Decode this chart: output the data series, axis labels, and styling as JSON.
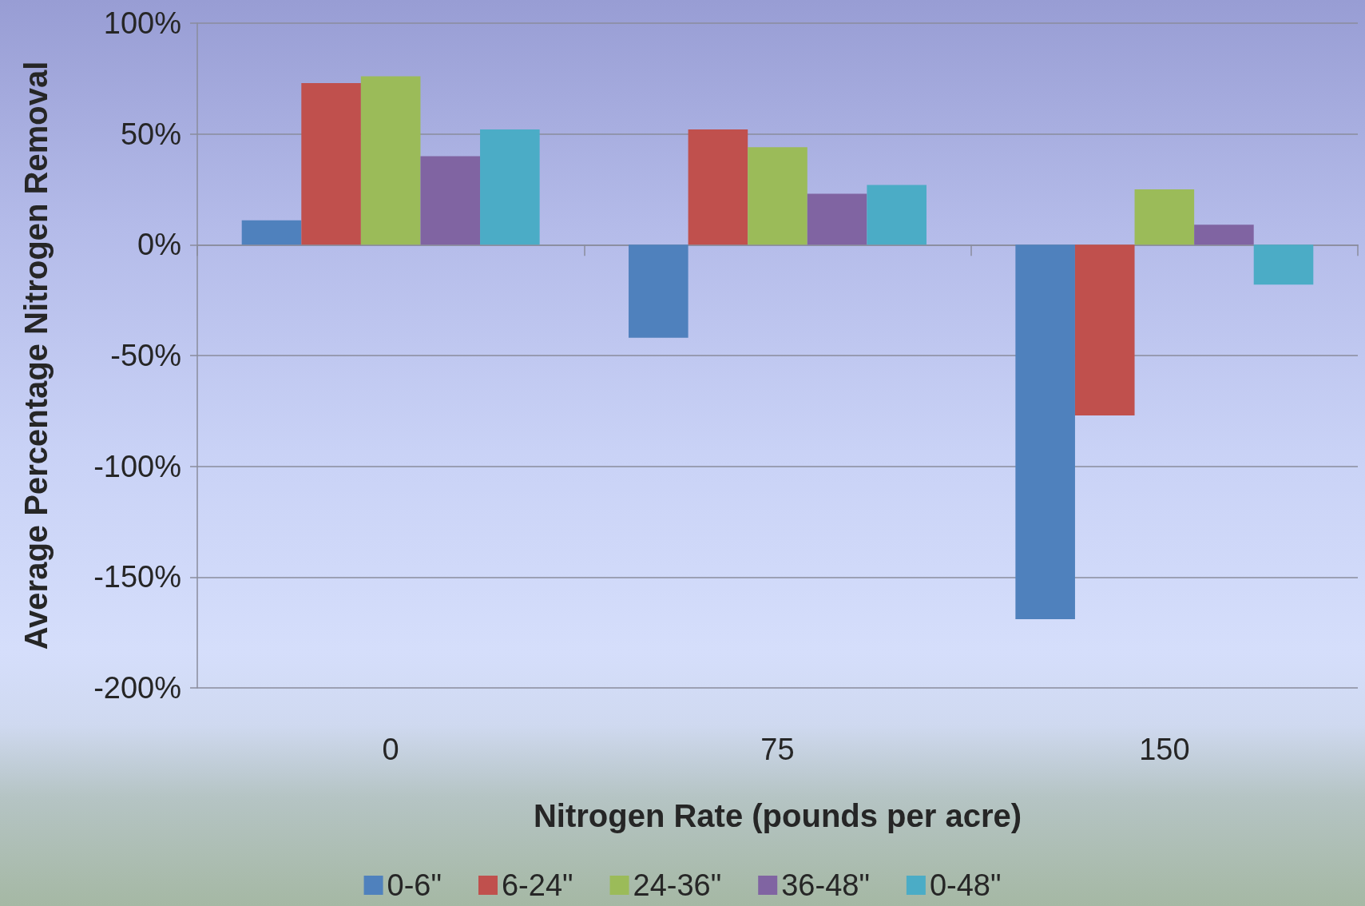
{
  "chart_data": {
    "type": "bar",
    "categories": [
      "0",
      "75",
      "150"
    ],
    "xlabel": "Nitrogen Rate (pounds per acre)",
    "ylabel": "Average Percentage Nitrogen Removal",
    "series": [
      {
        "name": "0-6\"",
        "color": "#4f81bd",
        "values": [
          11,
          -42,
          -169
        ]
      },
      {
        "name": "6-24\"",
        "color": "#c0504d",
        "values": [
          73,
          52,
          -77
        ]
      },
      {
        "name": "24-36\"",
        "color": "#9bbb59",
        "values": [
          76,
          44,
          25
        ]
      },
      {
        "name": "36-48\"",
        "color": "#8064a2",
        "values": [
          40,
          23,
          9
        ]
      },
      {
        "name": "0-48\"",
        "color": "#4bacc6",
        "values": [
          52,
          27,
          -18
        ]
      }
    ],
    "ylim": [
      -200,
      100
    ],
    "yticks": [
      {
        "value": -200,
        "label": "-200%"
      },
      {
        "value": -150,
        "label": "-150%"
      },
      {
        "value": -100,
        "label": "-100%"
      },
      {
        "value": -50,
        "label": "-50%"
      },
      {
        "value": 0,
        "label": "0%"
      },
      {
        "value": 50,
        "label": "50%"
      },
      {
        "value": 100,
        "label": "100%"
      }
    ],
    "grid": "y",
    "legend": "bottom"
  }
}
